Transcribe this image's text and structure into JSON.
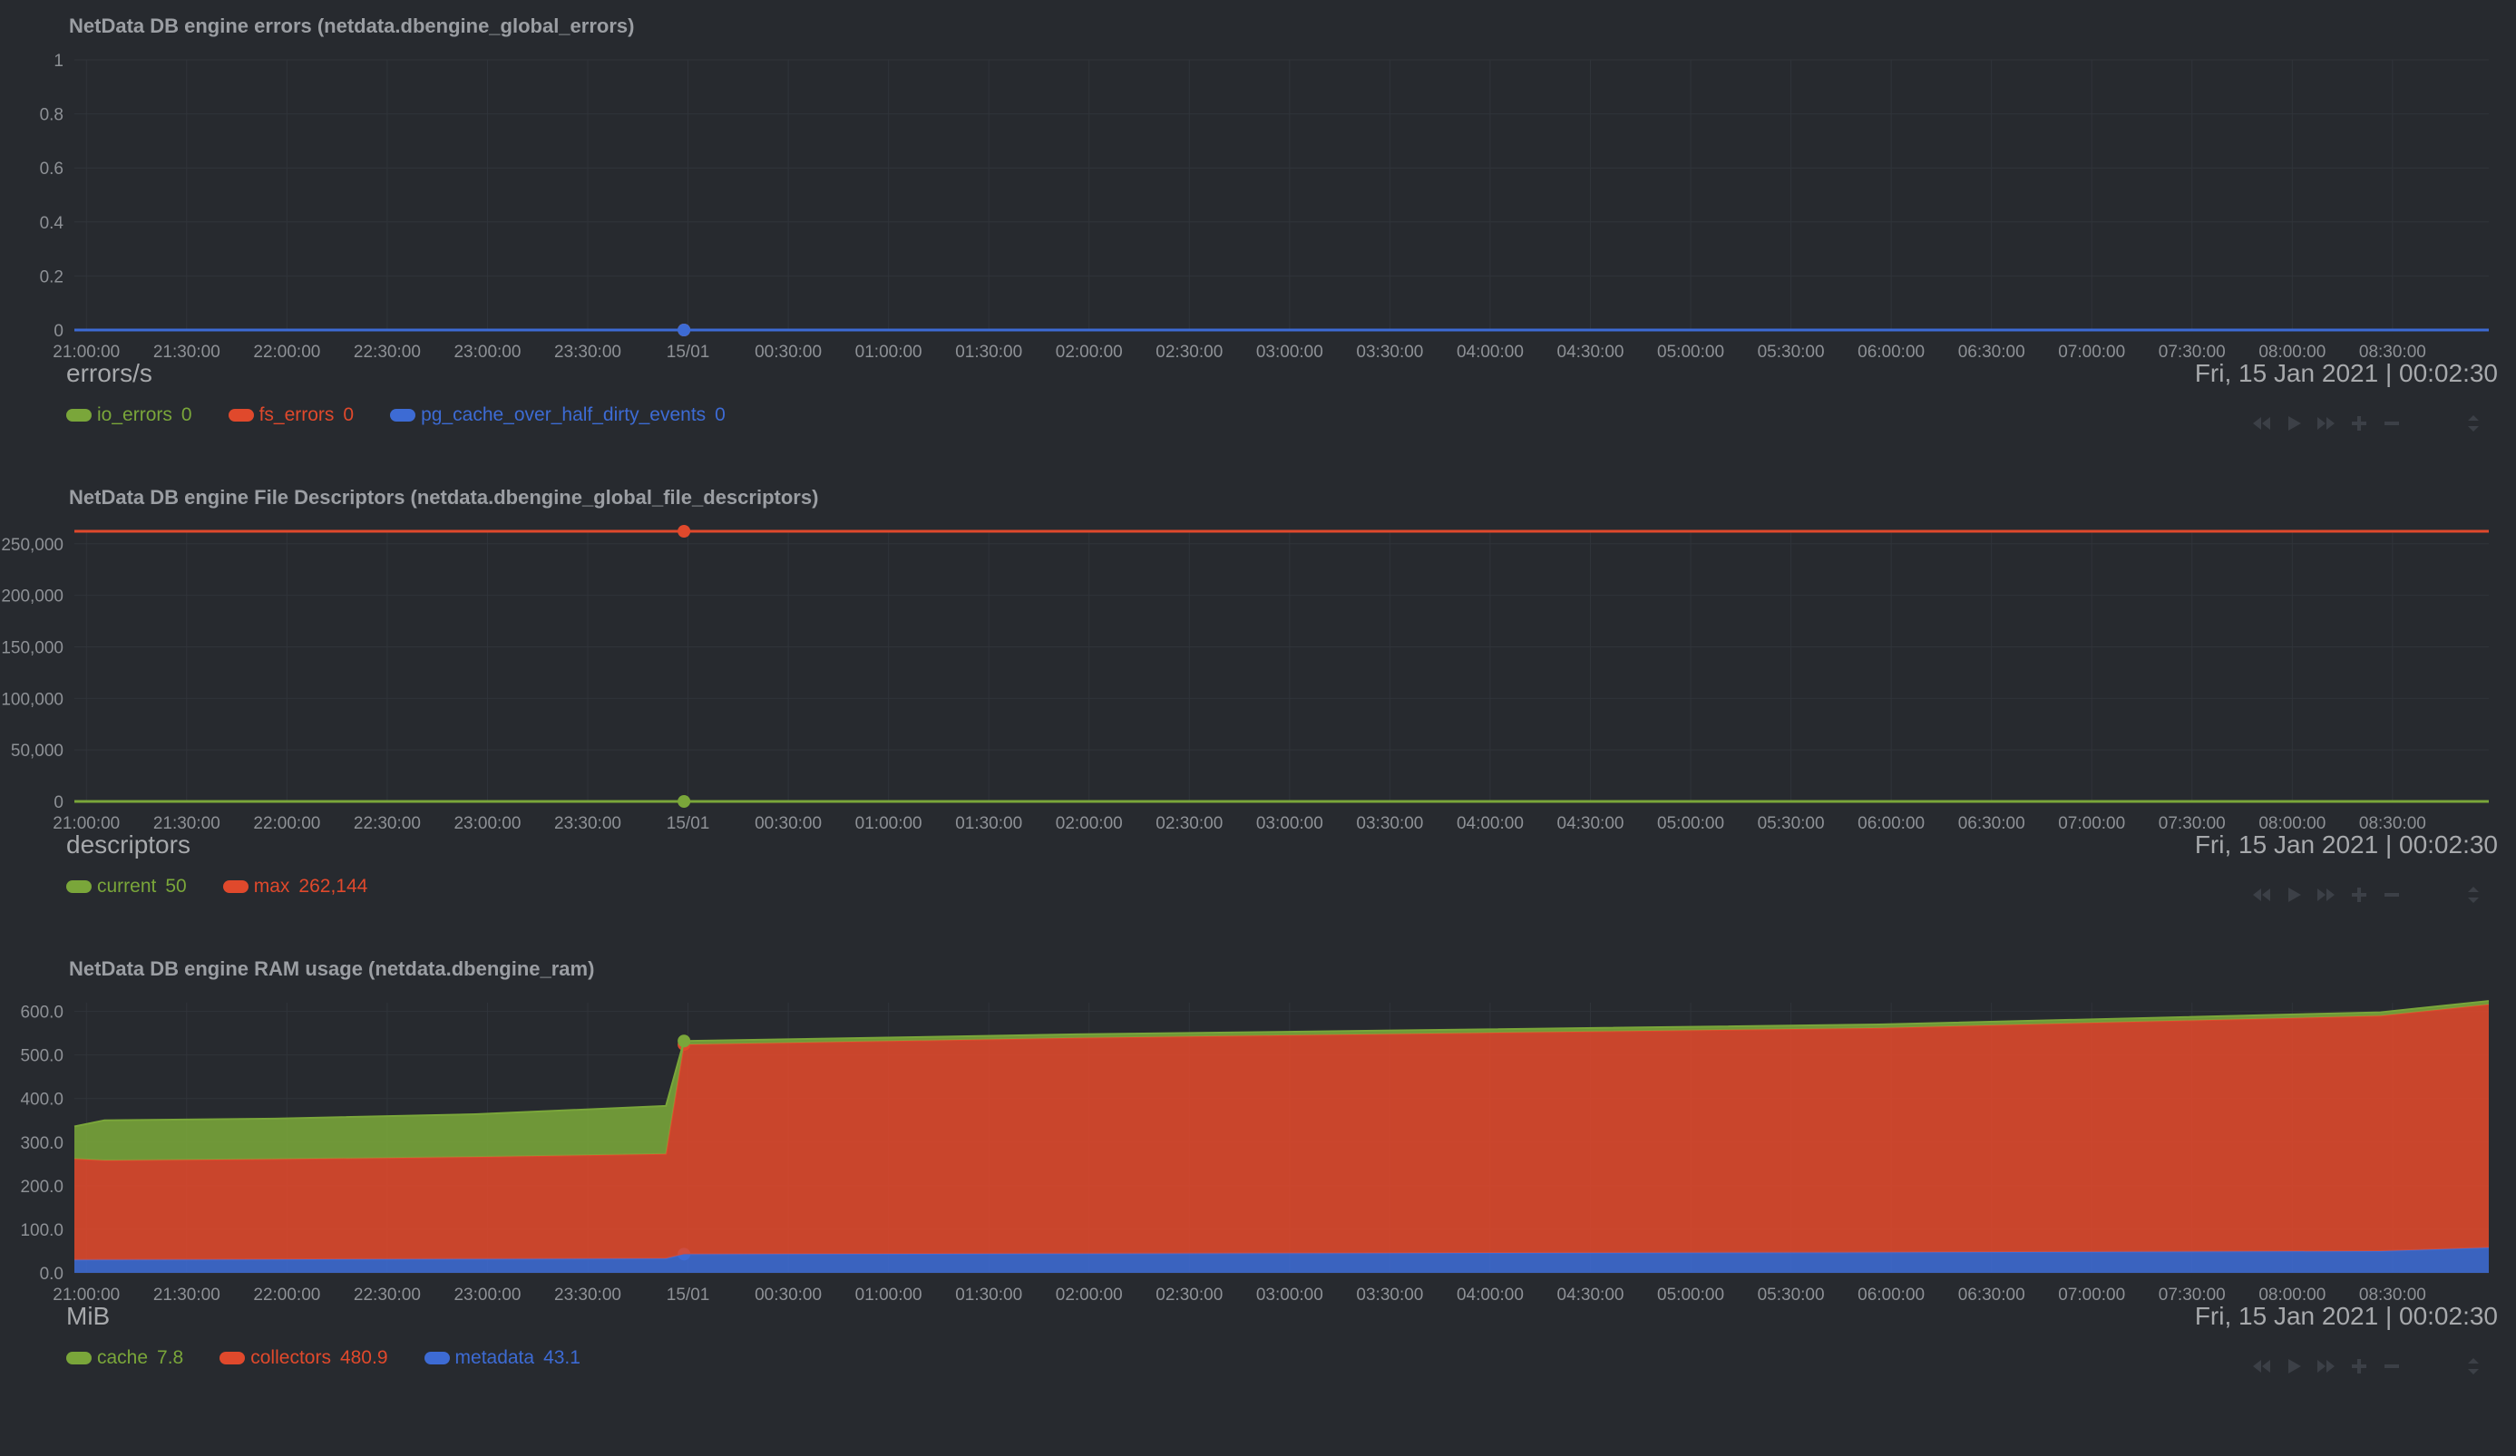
{
  "colors": {
    "green": "#7aa63a",
    "red": "#e0492c",
    "blue": "#3d6bd4",
    "background": "#272a2f",
    "grid": "#30343a",
    "text": "#a7a9ac"
  },
  "controls": [
    "rewind-icon",
    "play-icon",
    "fast-forward-icon",
    "zoom-in-icon",
    "zoom-out-icon",
    "resize-icon"
  ],
  "charts": [
    {
      "title": "NetData DB engine errors (netdata.dbengine_global_errors)",
      "unit": "errors/s",
      "datetime": "Fri, 15 Jan 2021 | 00:02:30",
      "legend": [
        {
          "name": "io_errors",
          "value": "0",
          "color": "#7aa63a"
        },
        {
          "name": "fs_errors",
          "value": "0",
          "color": "#e0492c"
        },
        {
          "name": "pg_cache_over_half_dirty_events",
          "value": "0",
          "color": "#3d6bd4"
        }
      ]
    },
    {
      "title": "NetData DB engine File Descriptors (netdata.dbengine_global_file_descriptors)",
      "unit": "descriptors",
      "datetime": "Fri, 15 Jan 2021 | 00:02:30",
      "legend": [
        {
          "name": "current",
          "value": "50",
          "color": "#7aa63a"
        },
        {
          "name": "max",
          "value": "262,144",
          "color": "#e0492c"
        }
      ]
    },
    {
      "title": "NetData DB engine RAM usage (netdata.dbengine_ram)",
      "unit": "MiB",
      "datetime": "Fri, 15 Jan 2021 | 00:02:30",
      "legend": [
        {
          "name": "cache",
          "value": "7.8",
          "color": "#7aa63a"
        },
        {
          "name": "collectors",
          "value": "480.9",
          "color": "#e0492c"
        },
        {
          "name": "metadata",
          "value": "43.1",
          "color": "#3d6bd4"
        }
      ]
    }
  ],
  "chart_data": [
    {
      "type": "line",
      "title": "NetData DB engine errors (netdata.dbengine_global_errors)",
      "ylabel": "errors/s",
      "ylim": [
        0,
        1
      ],
      "yticks": [
        "1",
        "0.8",
        "0.6",
        "0.4",
        "0.2",
        "0"
      ],
      "ytick_values": [
        1,
        0.8,
        0.6,
        0.4,
        0.2,
        0
      ],
      "xticks": [
        "21:00:00",
        "21:30:00",
        "22:00:00",
        "22:30:00",
        "23:00:00",
        "23:30:00",
        "15/01",
        "00:30:00",
        "01:00:00",
        "01:30:00",
        "02:00:00",
        "02:30:00",
        "03:00:00",
        "03:30:00",
        "04:00:00",
        "04:30:00",
        "05:00:00",
        "05:30:00",
        "06:00:00",
        "06:30:00",
        "07:00:00",
        "07:30:00",
        "08:00:00",
        "08:30:00"
      ],
      "x_range_hours": [
        0,
        12.04
      ],
      "highlight_hour": 3.04,
      "stacked": false,
      "series": [
        {
          "name": "io_errors",
          "color": "#7aa63a",
          "points": [
            [
              0,
              0
            ],
            [
              12.04,
              0
            ]
          ]
        },
        {
          "name": "fs_errors",
          "color": "#e0492c",
          "points": [
            [
              0,
              0
            ],
            [
              12.04,
              0
            ]
          ]
        },
        {
          "name": "pg_cache_over_half_dirty_events",
          "color": "#3d6bd4",
          "points": [
            [
              0,
              0
            ],
            [
              12.04,
              0
            ]
          ]
        }
      ]
    },
    {
      "type": "line",
      "title": "NetData DB engine File Descriptors (netdata.dbengine_global_file_descriptors)",
      "ylabel": "descriptors",
      "ylim": [
        0,
        262144
      ],
      "yticks": [
        "250,000",
        "200,000",
        "150,000",
        "100,000",
        "50,000",
        "0"
      ],
      "ytick_values": [
        250000,
        200000,
        150000,
        100000,
        50000,
        0
      ],
      "xticks": [
        "21:00:00",
        "21:30:00",
        "22:00:00",
        "22:30:00",
        "23:00:00",
        "23:30:00",
        "15/01",
        "00:30:00",
        "01:00:00",
        "01:30:00",
        "02:00:00",
        "02:30:00",
        "03:00:00",
        "03:30:00",
        "04:00:00",
        "04:30:00",
        "05:00:00",
        "05:30:00",
        "06:00:00",
        "06:30:00",
        "07:00:00",
        "07:30:00",
        "08:00:00",
        "08:30:00"
      ],
      "x_range_hours": [
        0,
        12.04
      ],
      "highlight_hour": 3.04,
      "stacked": false,
      "series": [
        {
          "name": "current",
          "color": "#7aa63a",
          "points": [
            [
              0,
              50
            ],
            [
              12.04,
              50
            ]
          ]
        },
        {
          "name": "max",
          "color": "#e0492c",
          "points": [
            [
              0,
              262144
            ],
            [
              12.04,
              262144
            ]
          ]
        }
      ]
    },
    {
      "type": "area",
      "title": "NetData DB engine RAM usage (netdata.dbengine_ram)",
      "ylabel": "MiB",
      "ylim": [
        0,
        620
      ],
      "yticks": [
        "600.0",
        "500.0",
        "400.0",
        "300.0",
        "200.0",
        "100.0",
        "0.0"
      ],
      "ytick_values": [
        600,
        500,
        400,
        300,
        200,
        100,
        0
      ],
      "xticks": [
        "21:00:00",
        "21:30:00",
        "22:00:00",
        "22:30:00",
        "23:00:00",
        "23:30:00",
        "15/01",
        "00:30:00",
        "01:00:00",
        "01:30:00",
        "02:00:00",
        "02:30:00",
        "03:00:00",
        "03:30:00",
        "04:00:00",
        "04:30:00",
        "05:00:00",
        "05:30:00",
        "06:00:00",
        "06:30:00",
        "07:00:00",
        "07:30:00",
        "08:00:00",
        "08:30:00"
      ],
      "x_range_hours": [
        0,
        12.04
      ],
      "highlight_hour": 3.04,
      "stacked": true,
      "series": [
        {
          "name": "metadata",
          "color": "#3d6bd4",
          "points": [
            [
              0,
              30
            ],
            [
              2.95,
              33
            ],
            [
              3.04,
              43
            ],
            [
              6,
              45
            ],
            [
              9,
              47
            ],
            [
              11.5,
              50
            ],
            [
              12.04,
              58
            ]
          ]
        },
        {
          "name": "collectors",
          "color": "#e0492c",
          "points": [
            [
              0,
              232
            ],
            [
              0.15,
              228
            ],
            [
              1,
              230
            ],
            [
              2,
              234
            ],
            [
              2.95,
              240
            ],
            [
              3.04,
              481
            ],
            [
              5,
              495
            ],
            [
              7,
              505
            ],
            [
              9,
              515
            ],
            [
              11.5,
              540
            ],
            [
              12.04,
              558
            ]
          ]
        },
        {
          "name": "cache",
          "color": "#7aa63a",
          "points": [
            [
              0,
              74
            ],
            [
              0.15,
              92
            ],
            [
              1,
              93
            ],
            [
              2,
              98
            ],
            [
              2.95,
              110
            ],
            [
              3.04,
              8
            ],
            [
              12.04,
              8
            ]
          ]
        }
      ]
    }
  ]
}
